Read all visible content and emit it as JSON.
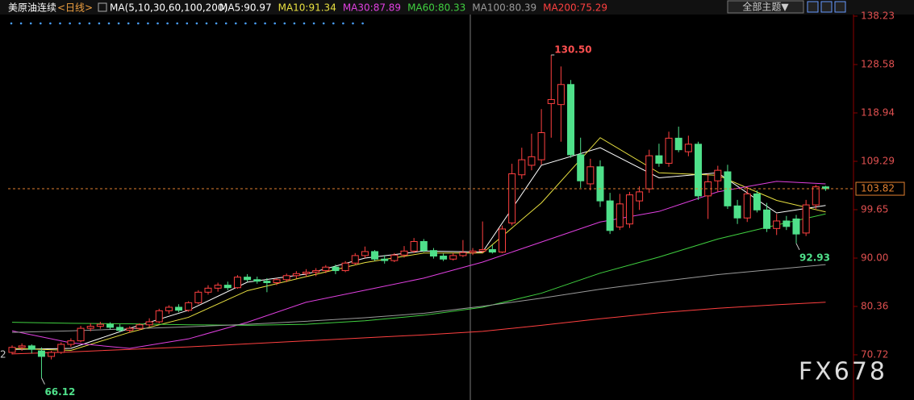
{
  "chart_data": {
    "type": "candlestick",
    "title": "美原油连续",
    "period": "<日线>",
    "ma_label": "MA(5,10,30,60,100,200)",
    "theme_button": "全部主题▼",
    "left_axis_label": "2",
    "watermark": "FX678",
    "up_color": "#ff4040",
    "down_color": "#4fe08a",
    "ylim": [
      61.71,
      138.23
    ],
    "yticks": [
      {
        "value": 138.23,
        "label": "138.23"
      },
      {
        "value": 128.58,
        "label": "128.58"
      },
      {
        "value": 118.94,
        "label": "118.94"
      },
      {
        "value": 109.29,
        "label": "109.29"
      },
      {
        "value": 99.65,
        "label": "99.65"
      },
      {
        "value": 90,
        "label": "90.00"
      },
      {
        "value": 80.36,
        "label": "80.36"
      },
      {
        "value": 70.72,
        "label": "70.72"
      }
    ],
    "last_price": {
      "value": 103.82,
      "label": "103.82"
    },
    "annotations": [
      {
        "value": 130.5,
        "label": "130.50"
      },
      {
        "value": 92.93,
        "label": "92.93"
      },
      {
        "value": 66.12,
        "label": "66.12"
      }
    ],
    "candles": [
      [
        71.2,
        72.6,
        70.8,
        72.2
      ],
      [
        72.2,
        73.0,
        71.5,
        72.5
      ],
      [
        72.5,
        72.8,
        71.0,
        71.8
      ],
      [
        71.5,
        72.2,
        66.12,
        70.4
      ],
      [
        70.4,
        71.5,
        69.8,
        71.2
      ],
      [
        71.2,
        73.2,
        70.9,
        72.8
      ],
      [
        72.8,
        74.0,
        72.3,
        73.5
      ],
      [
        73.5,
        76.5,
        73.2,
        76.0
      ],
      [
        76.0,
        77.0,
        75.4,
        76.4
      ],
      [
        76.4,
        77.3,
        75.9,
        76.8
      ],
      [
        76.8,
        77.2,
        75.8,
        76.2
      ],
      [
        76.2,
        76.8,
        75.2,
        75.6
      ],
      [
        75.6,
        76.4,
        75.1,
        76.0
      ],
      [
        76.0,
        77.0,
        75.6,
        76.7
      ],
      [
        76.7,
        78.0,
        76.3,
        77.3
      ],
      [
        77.3,
        79.9,
        77.0,
        79.5
      ],
      [
        79.5,
        80.6,
        78.9,
        80.2
      ],
      [
        80.2,
        80.8,
        79.2,
        79.6
      ],
      [
        79.6,
        81.4,
        79.3,
        81.1
      ],
      [
        81.1,
        83.6,
        80.8,
        83.2
      ],
      [
        83.2,
        84.6,
        82.7,
        84.0
      ],
      [
        84.0,
        85.1,
        83.3,
        84.6
      ],
      [
        84.6,
        85.3,
        83.6,
        84.1
      ],
      [
        84.1,
        86.6,
        83.9,
        86.2
      ],
      [
        86.2,
        86.8,
        85.3,
        85.7
      ],
      [
        85.7,
        86.3,
        84.9,
        85.4
      ],
      [
        85.4,
        86.0,
        83.2,
        85.1
      ],
      [
        85.1,
        86.0,
        84.6,
        85.7
      ],
      [
        85.7,
        86.9,
        85.2,
        86.5
      ],
      [
        86.5,
        87.4,
        85.9,
        86.9
      ],
      [
        86.9,
        87.8,
        86.3,
        87.2
      ],
      [
        87.2,
        88.0,
        86.4,
        87.5
      ],
      [
        87.5,
        88.6,
        87.0,
        88.2
      ],
      [
        88.2,
        88.7,
        86.8,
        87.5
      ],
      [
        87.5,
        89.4,
        87.2,
        89.0
      ],
      [
        89.0,
        91.0,
        88.6,
        90.5
      ],
      [
        90.5,
        92.3,
        90.0,
        91.3
      ],
      [
        91.3,
        91.6,
        89.4,
        89.8
      ],
      [
        89.8,
        90.6,
        88.9,
        89.5
      ],
      [
        89.5,
        91.0,
        89.2,
        90.6
      ],
      [
        90.6,
        92.4,
        90.1,
        91.4
      ],
      [
        91.4,
        94.0,
        91.0,
        93.3
      ],
      [
        93.3,
        93.8,
        91.2,
        91.5
      ],
      [
        91.5,
        92.0,
        89.9,
        90.4
      ],
      [
        90.4,
        90.9,
        89.4,
        89.8
      ],
      [
        89.8,
        91.0,
        89.5,
        90.5
      ],
      [
        90.5,
        93.6,
        90.2,
        91.1
      ],
      [
        91.1,
        92.0,
        90.6,
        91.4
      ],
      [
        91.4,
        97.3,
        91.0,
        91.7
      ],
      [
        91.7,
        92.6,
        90.9,
        91.2
      ],
      [
        91.2,
        96.5,
        91.0,
        95.8
      ],
      [
        97.0,
        108.8,
        96.5,
        106.8
      ],
      [
        106.6,
        112.0,
        105.8,
        109.6
      ],
      [
        108.5,
        114.8,
        107.5,
        110.2
      ],
      [
        109.6,
        119.7,
        108.6,
        115.0
      ],
      [
        120.8,
        130.5,
        114.0,
        121.6
      ],
      [
        120.6,
        128.2,
        113.2,
        124.6
      ],
      [
        124.6,
        125.5,
        110.0,
        110.6
      ],
      [
        110.6,
        114.0,
        104.0,
        105.4
      ],
      [
        104.8,
        109.8,
        103.5,
        108.2
      ],
      [
        108.2,
        109.5,
        100.2,
        101.4
      ],
      [
        101.4,
        103.0,
        94.8,
        95.5
      ],
      [
        96.2,
        102.8,
        95.6,
        100.8
      ],
      [
        96.8,
        103.2,
        96.0,
        102.6
      ],
      [
        101.4,
        104.3,
        99.6,
        103.2
      ],
      [
        103.8,
        111.6,
        103.0,
        110.4
      ],
      [
        110.4,
        112.8,
        108.2,
        108.9
      ],
      [
        108.9,
        115.2,
        108.2,
        113.9
      ],
      [
        113.9,
        116.2,
        111.1,
        111.6
      ],
      [
        111.2,
        114.4,
        110.3,
        112.7
      ],
      [
        112.7,
        113.2,
        101.6,
        102.4
      ],
      [
        102.4,
        106.8,
        97.8,
        105.2
      ],
      [
        105.4,
        108.4,
        103.2,
        107.5
      ],
      [
        107.2,
        108.6,
        99.8,
        100.4
      ],
      [
        100.4,
        101.6,
        96.8,
        98.0
      ],
      [
        98.0,
        104.2,
        97.2,
        102.8
      ],
      [
        102.8,
        103.5,
        99.1,
        99.6
      ],
      [
        99.6,
        101.0,
        95.2,
        95.9
      ],
      [
        95.9,
        98.8,
        94.6,
        97.4
      ],
      [
        97.4,
        98.4,
        95.6,
        96.3
      ],
      [
        97.8,
        98.6,
        92.93,
        94.8
      ],
      [
        95.0,
        101.6,
        94.4,
        100.6
      ],
      [
        100.6,
        104.6,
        99.8,
        104.2
      ],
      [
        104.2,
        104.4,
        103.4,
        103.82
      ]
    ],
    "series": [
      {
        "legend": "MA5:90.97",
        "color": "#ffffff",
        "x": [
          0,
          6,
          12,
          18,
          24,
          30,
          36,
          42,
          48,
          54,
          60,
          66,
          72,
          78,
          83
        ],
        "values": [
          71.8,
          72.0,
          76.0,
          79.6,
          85.2,
          86.8,
          90.0,
          91.4,
          91.2,
          108.5,
          112.0,
          106.0,
          107.0,
          99.0,
          100.5
        ]
      },
      {
        "legend": "MA10:91.34",
        "color": "#e8e040",
        "x": [
          0,
          6,
          12,
          18,
          24,
          30,
          36,
          42,
          48,
          54,
          60,
          66,
          72,
          78,
          83
        ],
        "values": [
          72.0,
          71.6,
          75.2,
          78.2,
          83.5,
          86.3,
          89.1,
          91.0,
          91.0,
          101.0,
          114.0,
          107.0,
          106.5,
          101.5,
          99.2
        ]
      },
      {
        "legend": "MA30:87.89",
        "color": "#e040e0",
        "x": [
          0,
          6,
          12,
          18,
          24,
          30,
          36,
          42,
          48,
          54,
          60,
          66,
          72,
          78,
          83
        ],
        "values": [
          75.5,
          73.1,
          72.0,
          73.9,
          77.2,
          81.2,
          83.6,
          86.0,
          89.2,
          93.2,
          97.2,
          99.3,
          103.2,
          105.3,
          104.8
        ]
      },
      {
        "legend": "MA60:80.33",
        "color": "#40d040",
        "x": [
          0,
          6,
          12,
          18,
          24,
          30,
          36,
          42,
          48,
          54,
          60,
          66,
          72,
          78,
          83
        ],
        "values": [
          77.2,
          77.0,
          76.9,
          76.7,
          76.6,
          76.8,
          77.5,
          78.6,
          80.2,
          83.0,
          87.0,
          90.2,
          93.8,
          96.6,
          98.8
        ]
      },
      {
        "legend": "MA100:80.39",
        "color": "#9a9a9a",
        "x": [
          0,
          6,
          12,
          18,
          24,
          30,
          36,
          42,
          48,
          54,
          60,
          66,
          72,
          78,
          83
        ],
        "values": [
          75.2,
          75.5,
          75.9,
          76.3,
          76.8,
          77.4,
          78.1,
          79.0,
          80.4,
          82.0,
          83.8,
          85.3,
          86.7,
          87.8,
          88.7
        ]
      },
      {
        "legend": "MA200:75.29",
        "color": "#ff4040",
        "x": [
          0,
          6,
          12,
          18,
          24,
          30,
          36,
          42,
          48,
          54,
          60,
          66,
          72,
          78,
          83
        ],
        "values": [
          70.9,
          71.3,
          71.8,
          72.3,
          72.9,
          73.5,
          74.1,
          74.7,
          75.4,
          76.6,
          77.9,
          79.1,
          80.0,
          80.7,
          81.2
        ]
      }
    ]
  }
}
